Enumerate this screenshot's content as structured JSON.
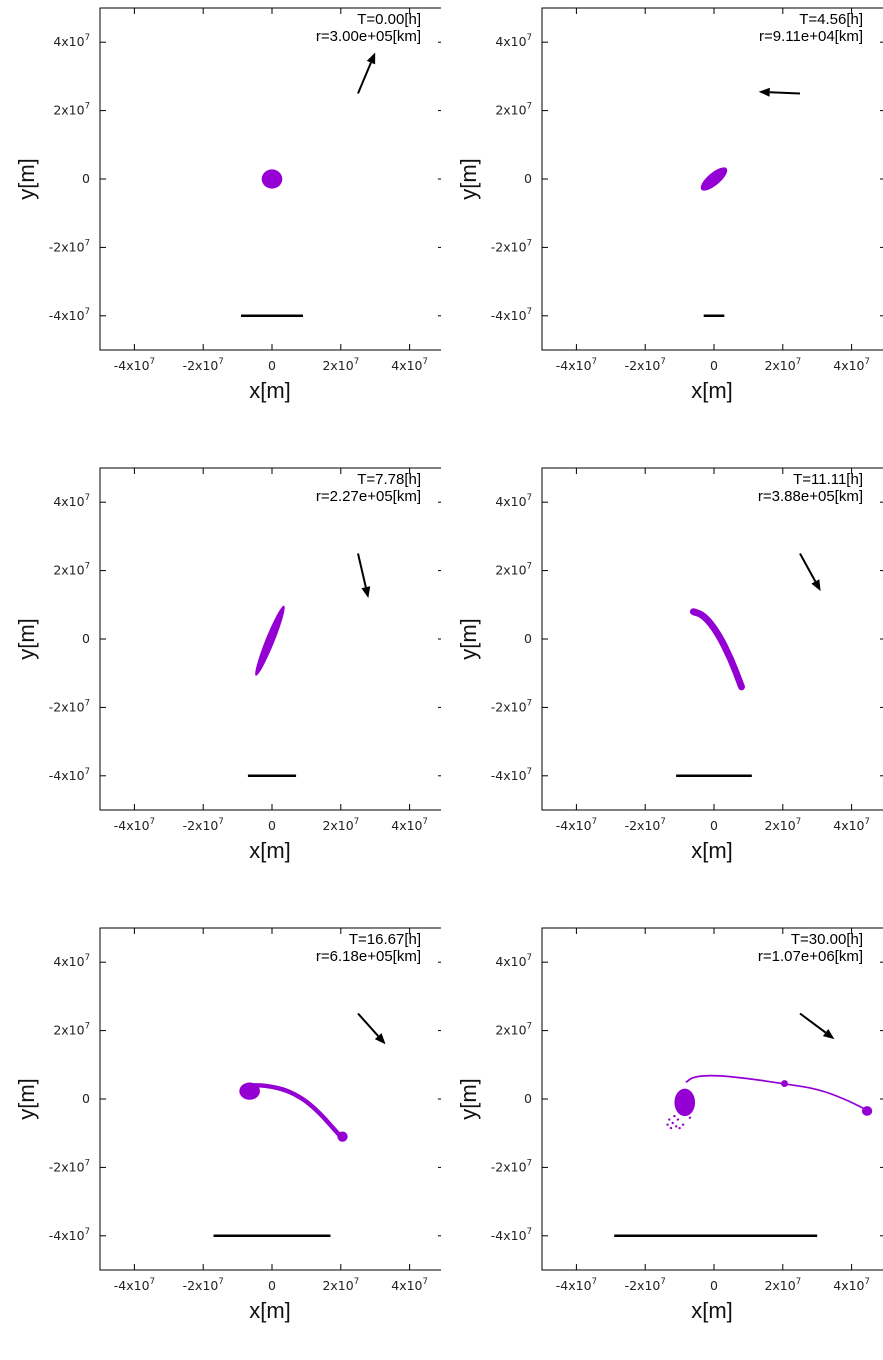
{
  "chart_data": [
    {
      "type": "scatter",
      "annotation_time": "T=0.00[h]",
      "annotation_distance": "r=3.00e+05[km]",
      "xlabel": "x[m]",
      "ylabel": "y[m]",
      "xlim": [
        -50000000,
        50000000
      ],
      "ylim": [
        -50000000,
        50000000
      ],
      "xticks": [
        -40000000,
        -20000000,
        0,
        20000000,
        40000000
      ],
      "yticks": [
        -40000000,
        -20000000,
        0,
        20000000,
        40000000
      ],
      "arrow": {
        "from": [
          25000000,
          25000000
        ],
        "to": [
          30000000,
          37000000
        ]
      },
      "scale_bar": {
        "x": [
          -9000000,
          9000000
        ],
        "y": -40000000
      },
      "blobs": [
        {
          "x": 0,
          "y": 0,
          "rx": 3000000,
          "ry": 2800000,
          "angle": 0
        }
      ]
    },
    {
      "type": "scatter",
      "annotation_time": "T=4.56[h]",
      "annotation_distance": "r=9.11e+04[km]",
      "xlabel": "x[m]",
      "ylabel": "y[m]",
      "xlim": [
        -50000000,
        50000000
      ],
      "ylim": [
        -50000000,
        50000000
      ],
      "xticks": [
        -40000000,
        -20000000,
        0,
        20000000,
        40000000
      ],
      "yticks": [
        -40000000,
        -20000000,
        0,
        20000000,
        40000000
      ],
      "arrow": {
        "from": [
          25000000,
          25000000
        ],
        "to": [
          13000000,
          25500000
        ]
      },
      "scale_bar": {
        "x": [
          -3000000,
          3000000
        ],
        "y": -40000000
      },
      "blobs": [
        {
          "x": 0,
          "y": 0,
          "rx": 4800000,
          "ry": 1800000,
          "angle": 40
        }
      ]
    },
    {
      "type": "scatter",
      "annotation_time": "T=7.78[h]",
      "annotation_distance": "r=2.27e+05[km]",
      "xlabel": "x[m]",
      "ylabel": "y[m]",
      "xlim": [
        -50000000,
        50000000
      ],
      "ylim": [
        -50000000,
        50000000
      ],
      "xticks": [
        -40000000,
        -20000000,
        0,
        20000000,
        40000000
      ],
      "yticks": [
        -40000000,
        -20000000,
        0,
        20000000,
        40000000
      ],
      "arrow": {
        "from": [
          25000000,
          25000000
        ],
        "to": [
          28000000,
          12000000
        ]
      },
      "scale_bar": {
        "x": [
          -7000000,
          7000000
        ],
        "y": -40000000
      },
      "blobs": [
        {
          "x": -600000,
          "y": -500000,
          "rx": 11000000,
          "ry": 1300000,
          "angle": 68
        }
      ]
    },
    {
      "type": "scatter",
      "annotation_time": "T=11.11[h]",
      "annotation_distance": "r=3.88e+05[km]",
      "xlabel": "x[m]",
      "ylabel": "y[m]",
      "xlim": [
        -50000000,
        50000000
      ],
      "ylim": [
        -50000000,
        50000000
      ],
      "xticks": [
        -40000000,
        -20000000,
        0,
        20000000,
        40000000
      ],
      "yticks": [
        -40000000,
        -20000000,
        0,
        20000000,
        40000000
      ],
      "arrow": {
        "from": [
          25000000,
          25000000
        ],
        "to": [
          31000000,
          14000000
        ]
      },
      "scale_bar": {
        "x": [
          -11000000,
          11000000
        ],
        "y": -40000000
      },
      "stream": {
        "points": [
          [
            -6000000,
            8000000
          ],
          [
            -3000000,
            7000000
          ],
          [
            1000000,
            2000000
          ],
          [
            5000000,
            -6000000
          ],
          [
            8000000,
            -14000000
          ]
        ],
        "width": 2000000
      },
      "blobs": [
        {
          "x": -5500000,
          "y": 7800000,
          "rx": 1200000,
          "ry": 1000000,
          "angle": 0
        }
      ]
    },
    {
      "type": "scatter",
      "annotation_time": "T=16.67[h]",
      "annotation_distance": "r=6.18e+05[km]",
      "xlabel": "x[m]",
      "ylabel": "y[m]",
      "xlim": [
        -50000000,
        50000000
      ],
      "ylim": [
        -50000000,
        50000000
      ],
      "xticks": [
        -40000000,
        -20000000,
        0,
        20000000,
        40000000
      ],
      "yticks": [
        -40000000,
        -20000000,
        0,
        20000000,
        40000000
      ],
      "arrow": {
        "from": [
          25000000,
          25000000
        ],
        "to": [
          33000000,
          16000000
        ]
      },
      "scale_bar": {
        "x": [
          -17000000,
          17000000
        ],
        "y": -40000000
      },
      "stream": {
        "points": [
          [
            -7000000,
            4000000
          ],
          [
            -2000000,
            4000000
          ],
          [
            5000000,
            2500000
          ],
          [
            12000000,
            -2000000
          ],
          [
            20000000,
            -11000000
          ]
        ],
        "width": 1300000
      },
      "blobs": [
        {
          "x": -6500000,
          "y": 2300000,
          "rx": 3000000,
          "ry": 2500000,
          "angle": 0
        },
        {
          "x": 20500000,
          "y": -11000000,
          "rx": 1500000,
          "ry": 1500000,
          "angle": 0
        }
      ]
    },
    {
      "type": "scatter",
      "annotation_time": "T=30.00[h]",
      "annotation_distance": "r=1.07e+06[km]",
      "xlabel": "x[m]",
      "ylabel": "y[m]",
      "xlim": [
        -50000000,
        50000000
      ],
      "ylim": [
        -50000000,
        50000000
      ],
      "xticks": [
        -40000000,
        -20000000,
        0,
        20000000,
        40000000
      ],
      "yticks": [
        -40000000,
        -20000000,
        0,
        20000000,
        40000000
      ],
      "arrow": {
        "from": [
          25000000,
          25000000
        ],
        "to": [
          35000000,
          17500000
        ]
      },
      "scale_bar": {
        "x": [
          -29000000,
          30000000
        ],
        "y": -40000000
      },
      "stream": {
        "points": [
          [
            -8000000,
            5000000
          ],
          [
            -6000000,
            6500000
          ],
          [
            0,
            7000000
          ],
          [
            10000000,
            6000000
          ],
          [
            20000000,
            4500000
          ],
          [
            30000000,
            3000000
          ],
          [
            38000000,
            0
          ],
          [
            44000000,
            -3000000
          ]
        ],
        "width": 500000
      },
      "blobs": [
        {
          "x": -8500000,
          "y": -1000000,
          "rx": 3000000,
          "ry": 4000000,
          "angle": 0
        },
        {
          "x": 20500000,
          "y": 4500000,
          "rx": 1000000,
          "ry": 1000000,
          "angle": 0
        },
        {
          "x": 44500000,
          "y": -3500000,
          "rx": 1500000,
          "ry": 1400000,
          "angle": 0
        }
      ],
      "debris": [
        [
          -12000000,
          -7000000
        ],
        [
          -11000000,
          -8000000
        ],
        [
          -10500000,
          -6000000
        ],
        [
          -9000000,
          -7500000
        ],
        [
          -13000000,
          -6000000
        ],
        [
          -12500000,
          -8500000
        ],
        [
          -11500000,
          -5000000
        ],
        [
          -10000000,
          -8500000
        ],
        [
          -7000000,
          -5500000
        ],
        [
          -13500000,
          -7500000
        ]
      ]
    }
  ]
}
